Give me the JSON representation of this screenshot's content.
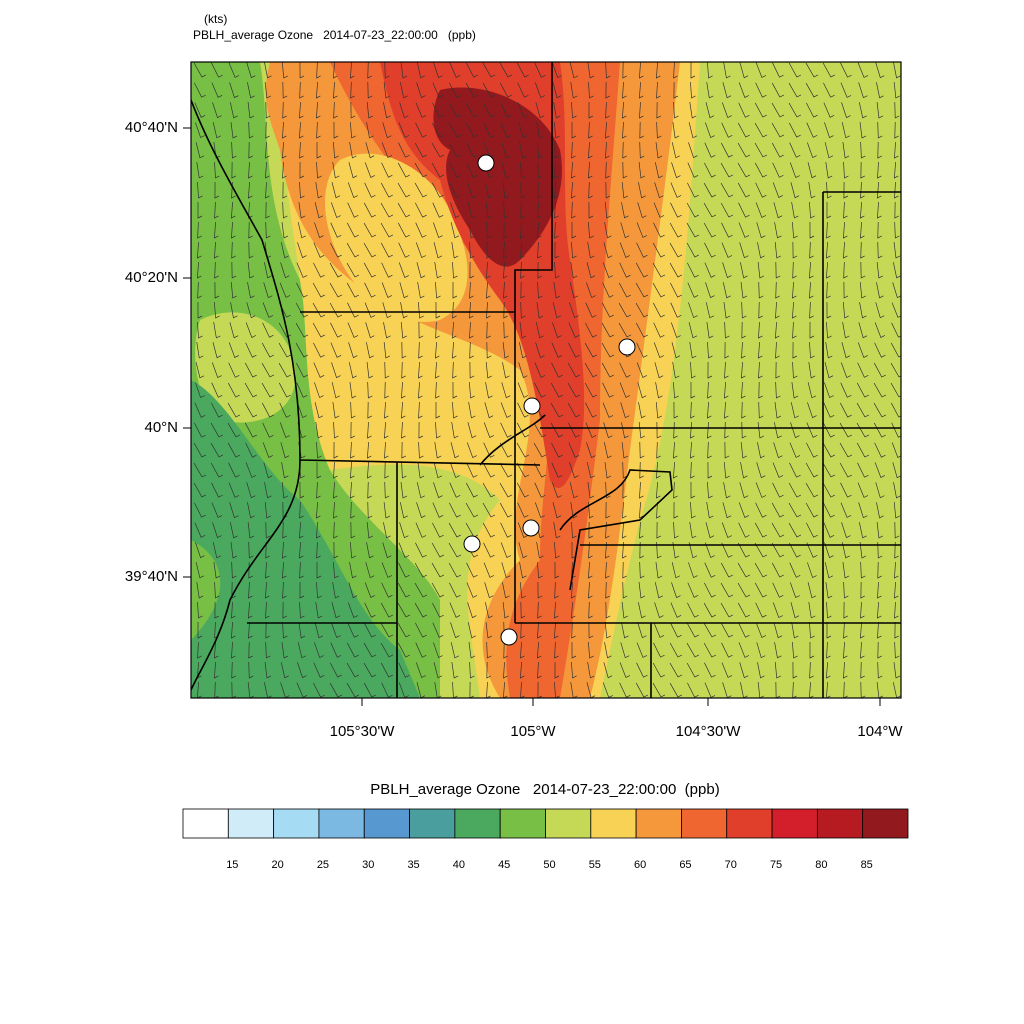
{
  "header": {
    "units": "(kts)",
    "title": "PBLH_average Ozone   2014-07-23_22:00:00   (ppb)"
  },
  "map": {
    "lat_labels": [
      "40°40'N",
      "40°20'N",
      "40°N",
      "39°40'N"
    ],
    "lon_labels": [
      "105°30'W",
      "105°W",
      "104°30'W",
      "104°W"
    ]
  },
  "colorbar": {
    "title": "PBLH_average Ozone   2014-07-23_22:00:00  (ppb)",
    "colors": [
      "#ffffff",
      "#d0ecf8",
      "#a6dbf4",
      "#7bb8e2",
      "#5898d0",
      "#4a9e9e",
      "#4aa95e",
      "#77bf45",
      "#c6d957",
      "#f8d254",
      "#f5983c",
      "#ef6630",
      "#e03f2b",
      "#d21f2b",
      "#b51b21",
      "#921a1e"
    ],
    "labels": [
      15,
      20,
      25,
      30,
      35,
      40,
      45,
      50,
      55,
      60,
      65,
      70,
      75,
      80,
      85
    ]
  }
}
